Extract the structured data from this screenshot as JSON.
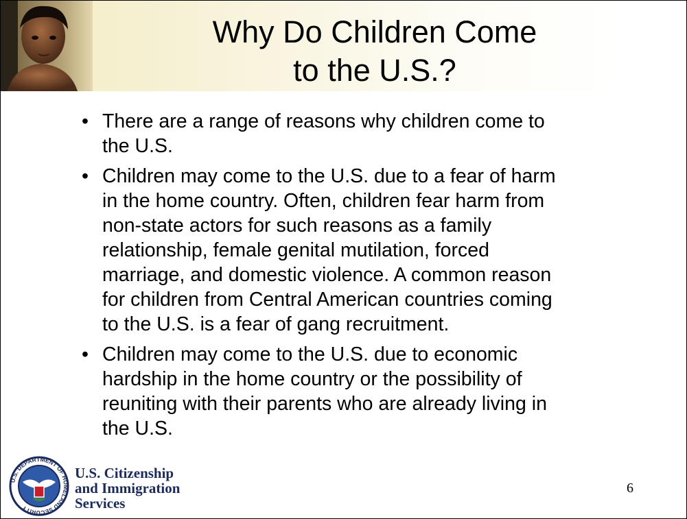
{
  "slide": {
    "title": [
      "Why Do Children Come",
      "to the U.S.?"
    ],
    "bullets": [
      [
        "There are a range of reasons why children come to",
        "the U.S."
      ],
      [
        "Children may come to the U.S. due to a fear of harm",
        "in the home country.  Often, children fear harm from",
        "non-state actors for such reasons as a family",
        "relationship, female genital mutilation, forced",
        "marriage, and domestic violence.  A common reason",
        "for children from Central American countries coming",
        "to the U.S. is a fear of gang recruitment."
      ],
      [
        "Children may come to the U.S. due to economic",
        "hardship in the home country or the possibility of",
        "reuniting with their parents who are already living in",
        "the U.S."
      ]
    ],
    "logo": {
      "seal_text": "U.S. DEPARTMENT OF HOMELAND SECURITY",
      "lines": [
        "U.S. Citizenship",
        "and Immigration",
        "Services"
      ]
    },
    "page_number": "6"
  }
}
